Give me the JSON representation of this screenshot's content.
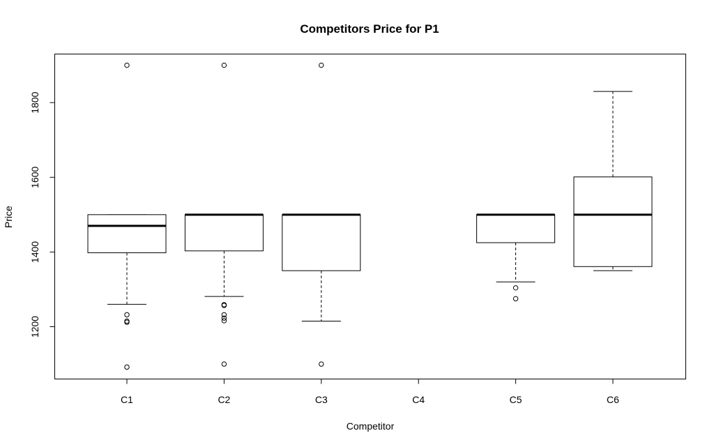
{
  "chart_data": {
    "type": "boxplot",
    "title": "Competitors Price for P1",
    "xlabel": "Competitor",
    "ylabel": "Price",
    "categories": [
      "C1",
      "C2",
      "C3",
      "C4",
      "C5",
      "C6"
    ],
    "ylim": [
      1060,
      1930
    ],
    "y_ticks": [
      1200,
      1400,
      1600,
      1800
    ],
    "grid": false,
    "boxes": [
      {
        "category": "C1",
        "whisker_low": 1260,
        "q1": 1398,
        "median": 1470,
        "q3": 1500,
        "whisker_high": 1500,
        "outliers": [
          1900,
          1232,
          1215,
          1212,
          1092
        ]
      },
      {
        "category": "C2",
        "whisker_low": 1281,
        "q1": 1403,
        "median": 1500,
        "q3": 1500,
        "whisker_high": 1500,
        "outliers": [
          1900,
          1259,
          1257,
          1232,
          1223,
          1216,
          1100
        ]
      },
      {
        "category": "C3",
        "whisker_low": 1215,
        "q1": 1350,
        "median": 1500,
        "q3": 1500,
        "whisker_high": 1500,
        "outliers": [
          1900,
          1100
        ]
      },
      {
        "category": "C4",
        "empty": true
      },
      {
        "category": "C5",
        "whisker_low": 1320,
        "q1": 1425,
        "median": 1500,
        "q3": 1500,
        "whisker_high": 1500,
        "outliers": [
          1304,
          1275
        ]
      },
      {
        "category": "C6",
        "whisker_low": 1350,
        "q1": 1361,
        "median": 1500,
        "q3": 1601,
        "whisker_high": 1830,
        "outliers": []
      }
    ]
  }
}
